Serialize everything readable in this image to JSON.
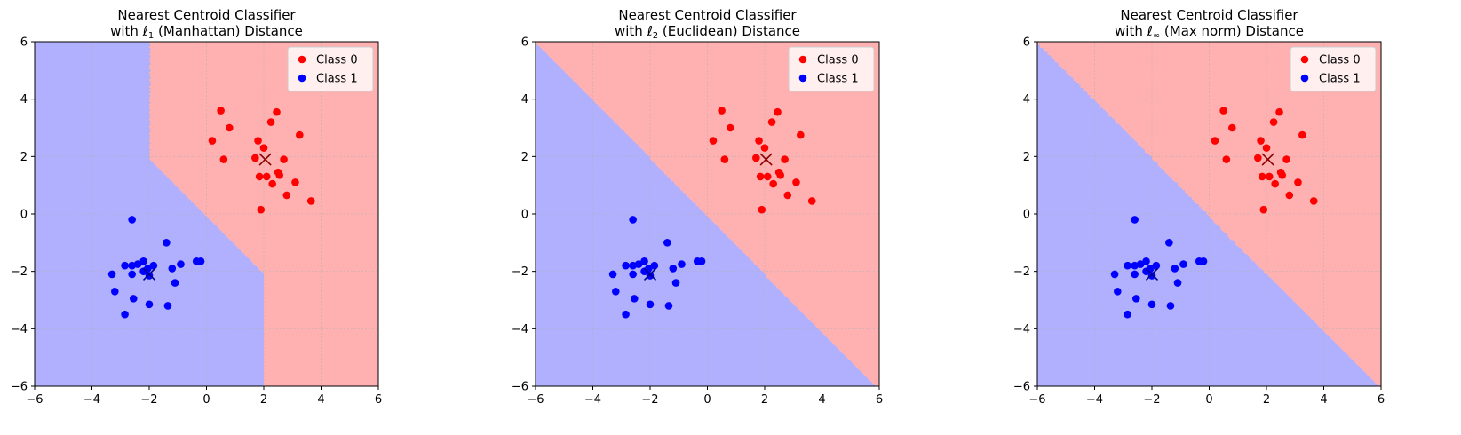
{
  "chart_data": [
    {
      "type": "scatter",
      "title_line1": "Nearest Centroid Classifier",
      "title_line2_prefix": "with ℓ",
      "title_line2_sub": "1",
      "title_line2_suffix": " (Manhattan) Distance",
      "metric": "l1",
      "xlabel": "",
      "ylabel": "",
      "xlim": [
        -6,
        6
      ],
      "ylim": [
        -6,
        6
      ],
      "xticks": [
        -6,
        -4,
        -2,
        0,
        2,
        4,
        6
      ],
      "yticks": [
        -6,
        -4,
        -2,
        0,
        2,
        4,
        6
      ],
      "grid": true,
      "legend_position": "top-right"
    },
    {
      "type": "scatter",
      "title_line1": "Nearest Centroid Classifier",
      "title_line2_prefix": "with ℓ",
      "title_line2_sub": "2",
      "title_line2_suffix": " (Euclidean) Distance",
      "metric": "l2",
      "xlabel": "",
      "ylabel": "",
      "xlim": [
        -6,
        6
      ],
      "ylim": [
        -6,
        6
      ],
      "xticks": [
        -6,
        -4,
        -2,
        0,
        2,
        4,
        6
      ],
      "yticks": [
        -6,
        -4,
        -2,
        0,
        2,
        4,
        6
      ],
      "grid": true,
      "legend_position": "top-right"
    },
    {
      "type": "scatter",
      "title_line1": "Nearest Centroid Classifier",
      "title_line2_prefix": "with ℓ",
      "title_line2_sub": "∞",
      "title_line2_suffix": " (Max norm) Distance",
      "metric": "linf",
      "xlabel": "",
      "ylabel": "",
      "xlim": [
        -6,
        6
      ],
      "ylim": [
        -6,
        6
      ],
      "xticks": [
        -6,
        -4,
        -2,
        0,
        2,
        4,
        6
      ],
      "yticks": [
        -6,
        -4,
        -2,
        0,
        2,
        4,
        6
      ],
      "grid": true,
      "legend_position": "top-right"
    }
  ],
  "series": [
    {
      "name": "Class 0",
      "color": "#ff0000",
      "region_color": "#ffb0b0",
      "centroid": [
        2.05,
        1.9
      ],
      "points": [
        [
          0.5,
          3.6
        ],
        [
          0.8,
          3.0
        ],
        [
          0.2,
          2.55
        ],
        [
          0.6,
          1.9
        ],
        [
          1.7,
          1.95
        ],
        [
          1.8,
          2.55
        ],
        [
          2.0,
          2.3
        ],
        [
          2.25,
          3.2
        ],
        [
          2.45,
          3.55
        ],
        [
          3.25,
          2.75
        ],
        [
          2.7,
          1.9
        ],
        [
          2.5,
          1.45
        ],
        [
          2.55,
          1.35
        ],
        [
          2.1,
          1.3
        ],
        [
          1.85,
          1.3
        ],
        [
          2.3,
          1.05
        ],
        [
          2.8,
          0.65
        ],
        [
          3.1,
          1.1
        ],
        [
          3.65,
          0.45
        ],
        [
          1.9,
          0.15
        ]
      ]
    },
    {
      "name": "Class 1",
      "color": "#0000ff",
      "region_color": "#b0b0ff",
      "centroid": [
        -2.0,
        -2.1
      ],
      "points": [
        [
          -2.6,
          -0.2
        ],
        [
          -1.4,
          -1.0
        ],
        [
          -0.35,
          -1.65
        ],
        [
          -0.2,
          -1.65
        ],
        [
          -0.9,
          -1.75
        ],
        [
          -1.2,
          -1.9
        ],
        [
          -2.2,
          -1.65
        ],
        [
          -2.4,
          -1.75
        ],
        [
          -2.6,
          -1.8
        ],
        [
          -2.85,
          -1.8
        ],
        [
          -1.85,
          -1.8
        ],
        [
          -2.05,
          -1.9
        ],
        [
          -2.2,
          -2.0
        ],
        [
          -3.3,
          -2.1
        ],
        [
          -2.6,
          -2.1
        ],
        [
          -2.0,
          -2.15
        ],
        [
          -1.1,
          -2.4
        ],
        [
          -3.2,
          -2.7
        ],
        [
          -2.55,
          -2.95
        ],
        [
          -2.0,
          -3.15
        ],
        [
          -1.35,
          -3.2
        ],
        [
          -2.85,
          -3.5
        ]
      ]
    }
  ]
}
